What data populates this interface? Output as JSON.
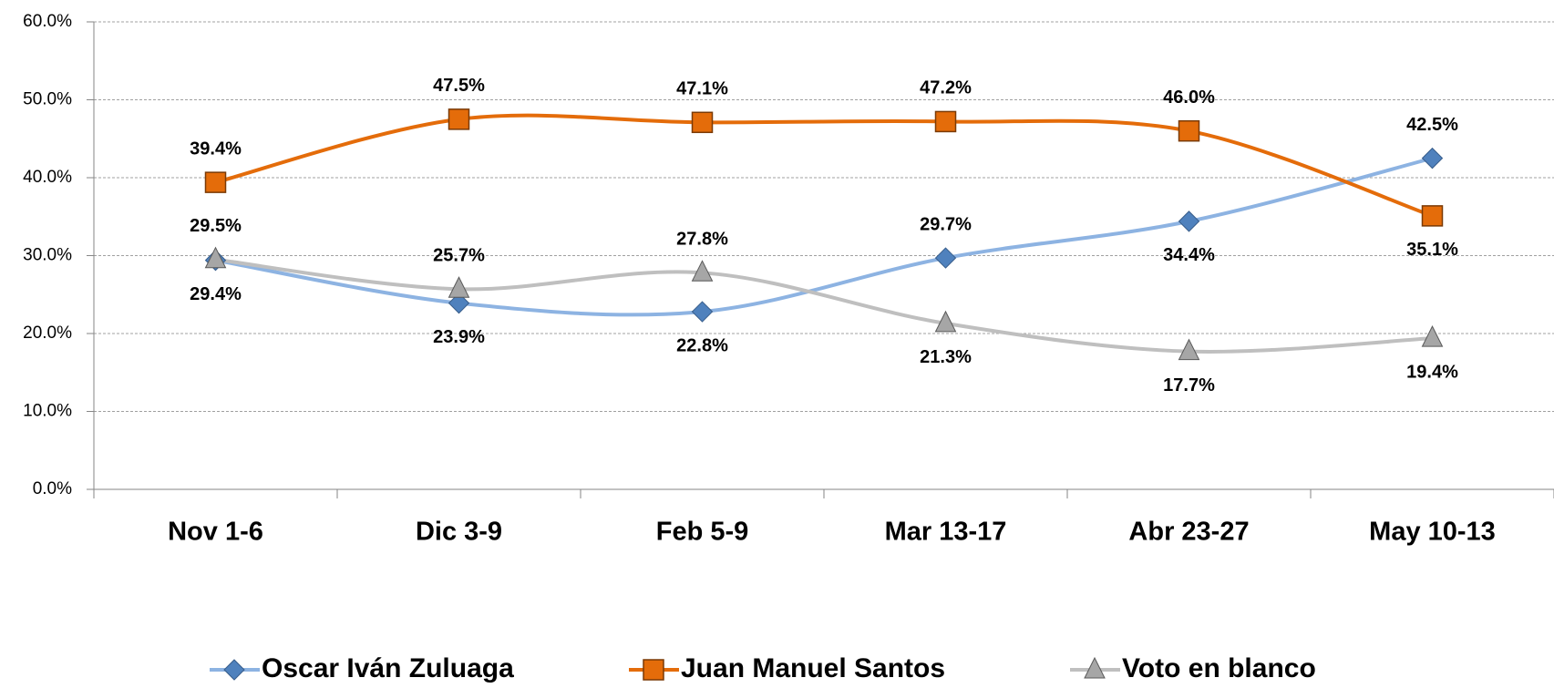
{
  "chart_data": {
    "type": "line",
    "categories": [
      "Nov 1-6",
      "Dic 3-9",
      "Feb 5-9",
      "Mar 13-17",
      "Abr 23-27",
      "May 10-13"
    ],
    "series": [
      {
        "name": "Oscar Iván Zuluaga",
        "color": "#8db3e2",
        "marker": "diamond",
        "marker_color": "#4f81bd",
        "values": [
          29.4,
          23.9,
          22.8,
          29.7,
          34.4,
          42.5
        ],
        "value_labels": [
          "29.4%",
          "23.9%",
          "22.8%",
          "29.7%",
          "34.4%",
          "42.5%"
        ]
      },
      {
        "name": "Juan Manuel Santos",
        "color": "#e46c0a",
        "marker": "square",
        "marker_color": "#e46c0a",
        "values": [
          39.4,
          47.5,
          47.1,
          47.2,
          46.0,
          35.1
        ],
        "value_labels": [
          "39.4%",
          "47.5%",
          "47.1%",
          "47.2%",
          "46.0%",
          "35.1%"
        ]
      },
      {
        "name": "Voto en blanco",
        "color": "#bfbfbf",
        "marker": "triangle",
        "marker_color": "#a6a6a6",
        "values": [
          29.5,
          25.7,
          27.8,
          21.3,
          17.7,
          19.4
        ],
        "value_labels": [
          "29.5%",
          "25.7%",
          "27.8%",
          "21.3%",
          "17.7%",
          "19.4%"
        ]
      }
    ],
    "ylim": [
      0,
      60
    ],
    "yticks": [
      {
        "value": 0,
        "label": "0.0%"
      },
      {
        "value": 10,
        "label": "10.0%"
      },
      {
        "value": 20,
        "label": "20.0%"
      },
      {
        "value": 30,
        "label": "30.0%"
      },
      {
        "value": 40,
        "label": "40.0%"
      },
      {
        "value": 50,
        "label": "50.0%"
      },
      {
        "value": 60,
        "label": "60.0%"
      }
    ],
    "grid": true,
    "legend": "bottom"
  }
}
